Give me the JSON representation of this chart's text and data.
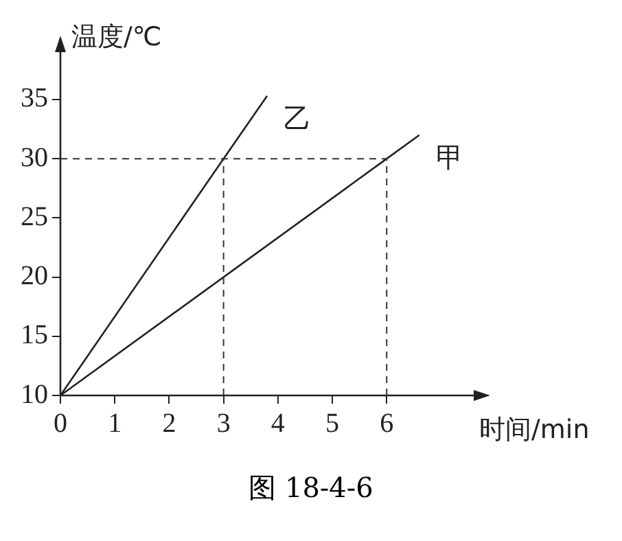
{
  "chart_data": {
    "type": "line",
    "xlabel": "时间/min",
    "ylabel": "温度/℃",
    "annotations": [
      "图 18-4-6"
    ],
    "xlim": [
      0,
      7.6
    ],
    "ylim": [
      10,
      39
    ],
    "xticks": [
      0,
      1,
      2,
      3,
      4,
      5,
      6
    ],
    "yticks": [
      10,
      15,
      20,
      25,
      30,
      35
    ],
    "series": [
      {
        "name": "乙",
        "color": "#222222",
        "x": [
          0,
          3,
          3.8
        ],
        "values": [
          10,
          30,
          35.3
        ]
      },
      {
        "name": "甲",
        "color": "#222222",
        "x": [
          0,
          6,
          6.6
        ],
        "values": [
          10,
          30,
          32
        ]
      }
    ],
    "ref_lines": [
      {
        "axis": "y",
        "value": 30,
        "line_style": "dashed"
      },
      {
        "axis": "x",
        "value": 3,
        "line_style": "dashed"
      },
      {
        "axis": "x",
        "value": 6,
        "line_style": "dashed"
      }
    ],
    "grid": false,
    "legend": false,
    "marker": "none",
    "line_style": "solid"
  }
}
